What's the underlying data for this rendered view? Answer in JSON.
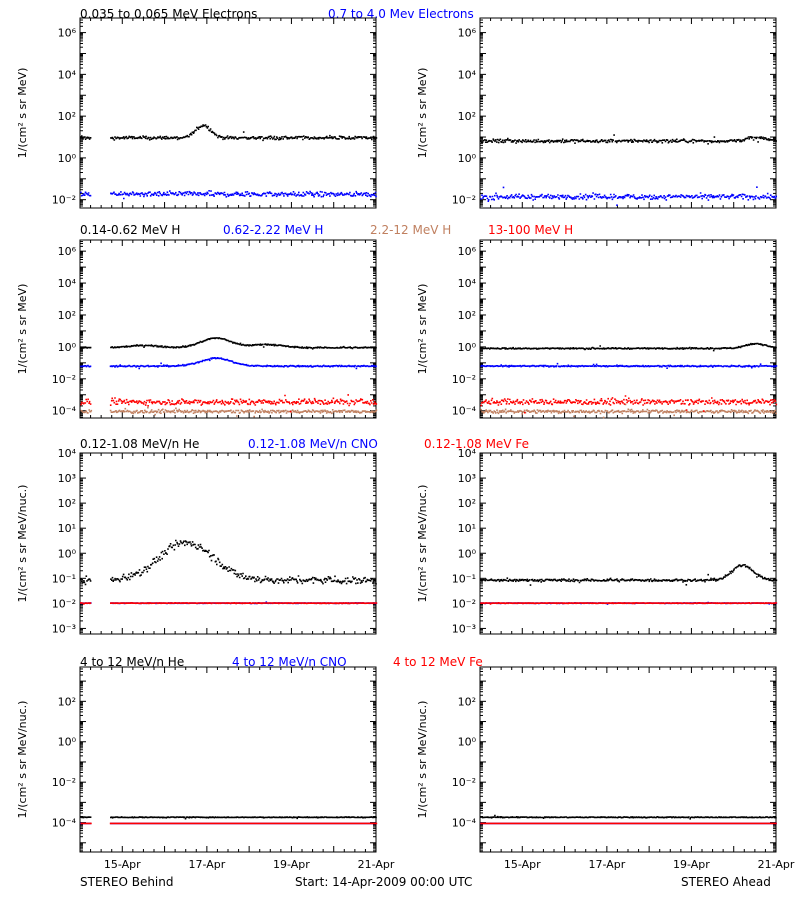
{
  "footer": {
    "left": "STEREO Behind",
    "center": "Start: 14-Apr-2009 00:00 UTC",
    "right": "STEREO Ahead"
  },
  "colors": {
    "black": "#000000",
    "blue": "#0000ff",
    "red": "#ff0000",
    "tan": "#c08060"
  },
  "rows": [
    {
      "legend": [
        {
          "text": "0.035 to 0.065 MeV Electrons",
          "color": "#000000"
        },
        {
          "text": "0.7 to 4.0 Mev Electrons",
          "color": "#0000ff"
        }
      ]
    },
    {
      "legend": [
        {
          "text": "0.14-0.62 MeV H",
          "color": "#000000"
        },
        {
          "text": "0.62-2.22 MeV H",
          "color": "#0000ff"
        },
        {
          "text": "2.2-12 MeV H",
          "color": "#c08060"
        },
        {
          "text": "13-100 MeV H",
          "color": "#ff0000"
        }
      ]
    },
    {
      "legend": [
        {
          "text": "0.12-1.08 MeV/n He",
          "color": "#000000"
        },
        {
          "text": "0.12-1.08 MeV/n CNO",
          "color": "#0000ff"
        },
        {
          "text": "0.12-1.08 MeV Fe",
          "color": "#ff0000"
        }
      ]
    },
    {
      "legend": [
        {
          "text": "4 to 12 MeV/n He",
          "color": "#000000"
        },
        {
          "text": "4 to 12 MeV/n CNO",
          "color": "#0000ff"
        },
        {
          "text": "4 to 12 MeV Fe",
          "color": "#ff0000"
        }
      ]
    }
  ],
  "chart_data": [
    {
      "panel": "row1-behind",
      "type": "scatter",
      "ylabel": "1/(cm² s sr MeV)",
      "yscale": "log",
      "ylim": [
        0.004,
        5000000
      ],
      "xlim": [
        0,
        7
      ],
      "x_ticks": [
        "15-Apr",
        "17-Apr",
        "19-Apr",
        "21-Apr"
      ],
      "y_tick_exponents": [
        -2,
        0,
        2,
        4,
        6
      ],
      "data_gap": [
        0.25,
        0.7
      ],
      "series": [
        {
          "name": "0.035 to 0.065 MeV Electrons",
          "color": "#000000",
          "level": 10,
          "spread": 0.08,
          "bumps": [
            [
              2.9,
              0.25,
              0.6
            ]
          ]
        },
        {
          "name": "0.7 to 4.0 Mev Electrons",
          "color": "#0000ff",
          "level": 0.02,
          "spread": 0.12,
          "bumps": []
        }
      ]
    },
    {
      "panel": "row1-ahead",
      "type": "scatter",
      "ylabel": "1/(cm² s sr MeV)",
      "yscale": "log",
      "ylim": [
        0.004,
        5000000
      ],
      "xlim": [
        0,
        7
      ],
      "x_ticks": [
        "15-Apr",
        "17-Apr",
        "19-Apr",
        "21-Apr"
      ],
      "y_tick_exponents": [
        -2,
        0,
        2,
        4,
        6
      ],
      "data_gap": null,
      "series": [
        {
          "name": "0.035 to 0.065 MeV Electrons",
          "color": "#000000",
          "level": 7,
          "spread": 0.08,
          "bumps": [
            [
              6.5,
              0.35,
              0.15
            ]
          ]
        },
        {
          "name": "0.7 to 4.0 Mev Electrons",
          "color": "#0000ff",
          "level": 0.015,
          "spread": 0.12,
          "bumps": []
        }
      ]
    },
    {
      "panel": "row2-behind",
      "type": "scatter",
      "ylabel": "1/(cm² s sr MeV)",
      "yscale": "log",
      "ylim": [
        3.5e-05,
        5000000
      ],
      "xlim": [
        0,
        7
      ],
      "x_ticks": [
        "15-Apr",
        "17-Apr",
        "19-Apr",
        "21-Apr"
      ],
      "y_tick_exponents": [
        -4,
        -2,
        0,
        2,
        4,
        6
      ],
      "data_gap": [
        0.25,
        0.7
      ],
      "series": [
        {
          "name": "0.14-0.62 MeV H",
          "color": "#000000",
          "level": 1,
          "spread": 0.04,
          "bumps": [
            [
              1.5,
              0.5,
              0.15
            ],
            [
              3.2,
              0.5,
              0.6
            ],
            [
              4.4,
              0.5,
              0.2
            ]
          ]
        },
        {
          "name": "0.62-2.22 MeV H",
          "color": "#0000ff",
          "level": 0.07,
          "spread": 0.04,
          "bumps": [
            [
              3.2,
              0.5,
              0.5
            ]
          ]
        },
        {
          "name": "2.2-12 MeV H",
          "color": "#c08060",
          "level": 0.0001,
          "spread": 0.1,
          "bumps": []
        },
        {
          "name": "13-100 MeV H",
          "color": "#ff0000",
          "level": 0.0004,
          "spread": 0.18,
          "bumps": []
        }
      ]
    },
    {
      "panel": "row2-ahead",
      "type": "scatter",
      "ylabel": "1/(cm² s sr MeV)",
      "yscale": "log",
      "ylim": [
        3.5e-05,
        5000000
      ],
      "xlim": [
        0,
        7
      ],
      "x_ticks": [
        "15-Apr",
        "17-Apr",
        "19-Apr",
        "21-Apr"
      ],
      "y_tick_exponents": [
        -4,
        -2,
        0,
        2,
        4,
        6
      ],
      "data_gap": null,
      "series": [
        {
          "name": "0.14-0.62 MeV H",
          "color": "#000000",
          "level": 0.9,
          "spread": 0.04,
          "bumps": [
            [
              6.5,
              0.35,
              0.3
            ]
          ]
        },
        {
          "name": "0.62-2.22 MeV H",
          "color": "#0000ff",
          "level": 0.07,
          "spread": 0.04,
          "bumps": []
        },
        {
          "name": "2.2-12 MeV H",
          "color": "#c08060",
          "level": 0.0001,
          "spread": 0.1,
          "bumps": []
        },
        {
          "name": "13-100 MeV H",
          "color": "#ff0000",
          "level": 0.0004,
          "spread": 0.18,
          "bumps": []
        }
      ]
    },
    {
      "panel": "row3-behind",
      "type": "scatter",
      "ylabel": "1/(cm² s sr MeV/nuc.)",
      "yscale": "log",
      "ylim": [
        0.0006,
        10000
      ],
      "xlim": [
        0,
        7
      ],
      "x_ticks": [
        "15-Apr",
        "17-Apr",
        "19-Apr",
        "21-Apr"
      ],
      "y_tick_exponents": [
        -3,
        -2,
        -1,
        0,
        1,
        2,
        3,
        4
      ],
      "data_gap": [
        0.25,
        0.7
      ],
      "series": [
        {
          "name": "0.12-1.08 MeV/n He",
          "color": "#000000",
          "level": 0.09,
          "spread": 0.15,
          "bumps": [
            [
              2.5,
              0.9,
              1.5
            ]
          ]
        },
        {
          "name": "0.12-1.08 MeV/n CNO",
          "color": "#0000ff",
          "level": 0.011,
          "spread": 0.01,
          "bumps": []
        },
        {
          "name": "0.12-1.08 MeV Fe",
          "color": "#ff0000",
          "level": 0.011,
          "spread": 0.01,
          "bumps": []
        }
      ]
    },
    {
      "panel": "row3-ahead",
      "type": "scatter",
      "ylabel": "1/(cm² s sr MeV/nuc.)",
      "yscale": "log",
      "ylim": [
        0.0006,
        10000
      ],
      "xlim": [
        0,
        7
      ],
      "x_ticks": [
        "15-Apr",
        "17-Apr",
        "19-Apr",
        "21-Apr"
      ],
      "y_tick_exponents": [
        -3,
        -2,
        -1,
        0,
        1,
        2,
        3,
        4
      ],
      "data_gap": null,
      "series": [
        {
          "name": "0.12-1.08 MeV/n He",
          "color": "#000000",
          "level": 0.09,
          "spread": 0.05,
          "bumps": [
            [
              6.2,
              0.35,
              0.6
            ]
          ]
        },
        {
          "name": "0.12-1.08 MeV/n CNO",
          "color": "#0000ff",
          "level": 0.011,
          "spread": 0.01,
          "bumps": []
        },
        {
          "name": "0.12-1.08 MeV Fe",
          "color": "#ff0000",
          "level": 0.011,
          "spread": 0.01,
          "bumps": []
        }
      ]
    },
    {
      "panel": "row4-behind",
      "type": "scatter",
      "ylabel": "1/(cm² s sr MeV/nuc.)",
      "yscale": "log",
      "ylim": [
        3.5e-06,
        5000
      ],
      "xlim": [
        0,
        7
      ],
      "x_ticks": [
        "15-Apr",
        "17-Apr",
        "19-Apr",
        "21-Apr"
      ],
      "y_tick_exponents": [
        -4,
        -2,
        0,
        2
      ],
      "data_gap": [
        0.25,
        0.7
      ],
      "series": [
        {
          "name": "4 to 12 MeV/n He",
          "color": "#000000",
          "level": 0.0002,
          "spread": 0.02,
          "bumps": []
        },
        {
          "name": "4 to 12 MeV/n CNO",
          "color": "#0000ff",
          "level": 0.0001,
          "spread": 0.0,
          "bumps": []
        },
        {
          "name": "4 to 12 MeV Fe",
          "color": "#ff0000",
          "level": 0.0001,
          "spread": 0.0,
          "bumps": []
        }
      ]
    },
    {
      "panel": "row4-ahead",
      "type": "scatter",
      "ylabel": "1/(cm² s sr MeV/nuc.)",
      "yscale": "log",
      "ylim": [
        3.5e-06,
        5000
      ],
      "xlim": [
        0,
        7
      ],
      "x_ticks": [
        "15-Apr",
        "17-Apr",
        "19-Apr",
        "21-Apr"
      ],
      "y_tick_exponents": [
        -4,
        -2,
        0,
        2
      ],
      "data_gap": null,
      "series": [
        {
          "name": "4 to 12 MeV/n He",
          "color": "#000000",
          "level": 0.0002,
          "spread": 0.02,
          "bumps": []
        },
        {
          "name": "4 to 12 MeV/n CNO",
          "color": "#0000ff",
          "level": 0.0001,
          "spread": 0.0,
          "bumps": []
        },
        {
          "name": "4 to 12 MeV Fe",
          "color": "#ff0000",
          "level": 0.0001,
          "spread": 0.0,
          "bumps": []
        }
      ]
    }
  ]
}
